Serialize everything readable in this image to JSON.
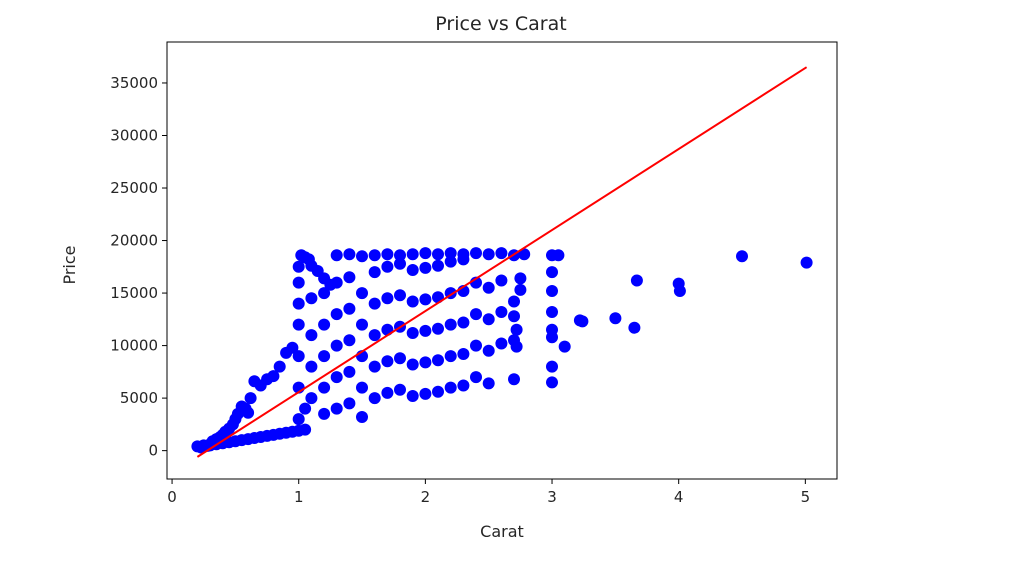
{
  "chart_data": {
    "type": "scatter",
    "title": "Price vs Carat",
    "xlabel": "Carat",
    "ylabel": "Price",
    "xlim": [
      -0.04,
      5.25
    ],
    "ylim": [
      -2700,
      38900
    ],
    "x_ticks": [
      0,
      1,
      2,
      3,
      4,
      5
    ],
    "x_tick_labels": [
      "0",
      "1",
      "2",
      "3",
      "4",
      "5"
    ],
    "y_ticks": [
      0,
      5000,
      10000,
      15000,
      20000,
      25000,
      30000,
      35000
    ],
    "y_tick_labels": [
      "0",
      "5000",
      "10000",
      "15000",
      "20000",
      "25000",
      "30000",
      "35000"
    ],
    "grid": false,
    "series": [
      {
        "kind": "scatter",
        "color": "#0000ff",
        "points": [
          [
            0.2,
            400
          ],
          [
            0.23,
            300
          ],
          [
            0.25,
            500
          ],
          [
            0.28,
            450
          ],
          [
            0.3,
            600
          ],
          [
            0.32,
            900
          ],
          [
            0.35,
            1100
          ],
          [
            0.38,
            1300
          ],
          [
            0.4,
            1500
          ],
          [
            0.42,
            1800
          ],
          [
            0.45,
            2100
          ],
          [
            0.48,
            2500
          ],
          [
            0.5,
            3000
          ],
          [
            0.52,
            3500
          ],
          [
            0.55,
            4200
          ],
          [
            0.58,
            4000
          ],
          [
            0.6,
            3600
          ],
          [
            0.62,
            5000
          ],
          [
            0.65,
            6600
          ],
          [
            0.7,
            6200
          ],
          [
            0.75,
            6800
          ],
          [
            0.8,
            7100
          ],
          [
            0.85,
            8000
          ],
          [
            0.9,
            9300
          ],
          [
            0.95,
            9800
          ],
          [
            0.3,
            500
          ],
          [
            0.35,
            600
          ],
          [
            0.4,
            700
          ],
          [
            0.45,
            800
          ],
          [
            0.5,
            900
          ],
          [
            0.55,
            1000
          ],
          [
            0.6,
            1100
          ],
          [
            0.65,
            1200
          ],
          [
            0.7,
            1300
          ],
          [
            0.75,
            1400
          ],
          [
            0.8,
            1500
          ],
          [
            0.85,
            1600
          ],
          [
            0.9,
            1700
          ],
          [
            0.95,
            1800
          ],
          [
            1.0,
            1900
          ],
          [
            1.05,
            2000
          ],
          [
            1.0,
            16000
          ],
          [
            1.0,
            17500
          ],
          [
            1.02,
            18600
          ],
          [
            1.05,
            18400
          ],
          [
            1.08,
            18200
          ],
          [
            1.1,
            17600
          ],
          [
            1.15,
            17100
          ],
          [
            1.2,
            16400
          ],
          [
            1.25,
            15800
          ],
          [
            1.3,
            18600
          ],
          [
            1.4,
            18700
          ],
          [
            1.5,
            18500
          ],
          [
            1.6,
            18600
          ],
          [
            1.7,
            18700
          ],
          [
            1.8,
            18600
          ],
          [
            1.9,
            18700
          ],
          [
            2.0,
            18800
          ],
          [
            2.1,
            18700
          ],
          [
            2.2,
            18800
          ],
          [
            2.3,
            18700
          ],
          [
            2.4,
            18800
          ],
          [
            2.5,
            18700
          ],
          [
            2.6,
            18800
          ],
          [
            2.7,
            18600
          ],
          [
            2.78,
            18700
          ],
          [
            1.0,
            3000
          ],
          [
            1.0,
            6000
          ],
          [
            1.0,
            9000
          ],
          [
            1.0,
            12000
          ],
          [
            1.0,
            14000
          ],
          [
            1.05,
            4000
          ],
          [
            1.1,
            5000
          ],
          [
            1.1,
            8000
          ],
          [
            1.1,
            11000
          ],
          [
            1.1,
            14500
          ],
          [
            1.2,
            3500
          ],
          [
            1.2,
            6000
          ],
          [
            1.2,
            9000
          ],
          [
            1.2,
            12000
          ],
          [
            1.2,
            15000
          ],
          [
            1.3,
            4000
          ],
          [
            1.3,
            7000
          ],
          [
            1.3,
            10000
          ],
          [
            1.3,
            13000
          ],
          [
            1.3,
            16000
          ],
          [
            1.4,
            4500
          ],
          [
            1.4,
            7500
          ],
          [
            1.4,
            10500
          ],
          [
            1.4,
            13500
          ],
          [
            1.4,
            16500
          ],
          [
            1.5,
            3200
          ],
          [
            1.5,
            6000
          ],
          [
            1.5,
            9000
          ],
          [
            1.5,
            12000
          ],
          [
            1.5,
            15000
          ],
          [
            1.6,
            5000
          ],
          [
            1.6,
            8000
          ],
          [
            1.6,
            11000
          ],
          [
            1.6,
            14000
          ],
          [
            1.6,
            17000
          ],
          [
            1.7,
            5500
          ],
          [
            1.7,
            8500
          ],
          [
            1.7,
            11500
          ],
          [
            1.7,
            14500
          ],
          [
            1.7,
            17500
          ],
          [
            1.8,
            5800
          ],
          [
            1.8,
            8800
          ],
          [
            1.8,
            11800
          ],
          [
            1.8,
            14800
          ],
          [
            1.8,
            17800
          ],
          [
            1.9,
            5200
          ],
          [
            1.9,
            8200
          ],
          [
            1.9,
            11200
          ],
          [
            1.9,
            14200
          ],
          [
            1.9,
            17200
          ],
          [
            2.0,
            5400
          ],
          [
            2.0,
            8400
          ],
          [
            2.0,
            11400
          ],
          [
            2.0,
            14400
          ],
          [
            2.0,
            17400
          ],
          [
            2.1,
            5600
          ],
          [
            2.1,
            8600
          ],
          [
            2.1,
            11600
          ],
          [
            2.1,
            14600
          ],
          [
            2.1,
            17600
          ],
          [
            2.2,
            6000
          ],
          [
            2.2,
            9000
          ],
          [
            2.2,
            12000
          ],
          [
            2.2,
            15000
          ],
          [
            2.2,
            18000
          ],
          [
            2.3,
            6200
          ],
          [
            2.3,
            9200
          ],
          [
            2.3,
            12200
          ],
          [
            2.3,
            15200
          ],
          [
            2.3,
            18200
          ],
          [
            2.4,
            7000
          ],
          [
            2.4,
            10000
          ],
          [
            2.4,
            13000
          ],
          [
            2.4,
            16000
          ],
          [
            2.5,
            6400
          ],
          [
            2.5,
            9500
          ],
          [
            2.5,
            12500
          ],
          [
            2.5,
            15500
          ],
          [
            2.6,
            10200
          ],
          [
            2.6,
            13200
          ],
          [
            2.6,
            16200
          ],
          [
            2.7,
            6800
          ],
          [
            2.7,
            10500
          ],
          [
            2.7,
            12800
          ],
          [
            2.7,
            14200
          ],
          [
            2.75,
            15300
          ],
          [
            2.75,
            16400
          ],
          [
            2.72,
            11500
          ],
          [
            2.72,
            9900
          ],
          [
            3.0,
            6500
          ],
          [
            3.0,
            8000
          ],
          [
            3.0,
            10800
          ],
          [
            3.0,
            11500
          ],
          [
            3.0,
            13200
          ],
          [
            3.0,
            15200
          ],
          [
            3.0,
            17000
          ],
          [
            3.0,
            18600
          ],
          [
            3.05,
            18600
          ],
          [
            3.1,
            9900
          ],
          [
            3.22,
            12400
          ],
          [
            3.24,
            12300
          ],
          [
            3.5,
            12600
          ],
          [
            3.65,
            11700
          ],
          [
            3.67,
            16200
          ],
          [
            4.0,
            15900
          ],
          [
            4.01,
            15200
          ],
          [
            4.5,
            18500
          ],
          [
            5.01,
            17900
          ]
        ]
      },
      {
        "kind": "line",
        "color": "#ff0000",
        "points": [
          [
            0.2,
            -600
          ],
          [
            5.01,
            36500
          ]
        ]
      }
    ]
  }
}
